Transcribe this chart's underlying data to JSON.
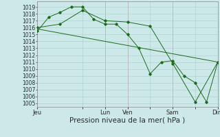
{
  "background_color": "#cce8e8",
  "grid_color": "#aacccc",
  "line_color": "#1a6b1a",
  "marker_color": "#1a6b1a",
  "vline_color": "#cc9999",
  "xlabel": "Pression niveau de la mer( hPa )",
  "xlabel_fontsize": 7.5,
  "yticks": [
    1005,
    1006,
    1007,
    1008,
    1009,
    1010,
    1011,
    1012,
    1013,
    1014,
    1015,
    1016,
    1017,
    1018,
    1019
  ],
  "ylim": [
    1004.5,
    1019.8
  ],
  "xtick_labels": [
    "Jeu",
    "",
    "Lun",
    "Ven",
    "",
    "Sam",
    "",
    "Dim"
  ],
  "xtick_positions": [
    0,
    48,
    72,
    96,
    120,
    144,
    168,
    192
  ],
  "xlim": [
    0,
    192
  ],
  "series1_x": [
    0,
    12,
    24,
    36,
    48,
    60,
    72,
    84,
    96,
    108,
    120,
    132,
    144,
    156,
    168,
    180,
    192
  ],
  "series1_y": [
    1015.5,
    1017.5,
    1018.2,
    1019.0,
    1019.0,
    1017.2,
    1016.5,
    1016.5,
    1015.0,
    1013.0,
    1009.3,
    1011.0,
    1011.2,
    1009.0,
    1008.0,
    1005.2,
    1011.0
  ],
  "series2_x": [
    0,
    24,
    48,
    72,
    96,
    120,
    144,
    168,
    192
  ],
  "series2_y": [
    1016.0,
    1016.5,
    1018.5,
    1017.0,
    1016.8,
    1016.2,
    1010.8,
    1005.2,
    1011.0
  ],
  "series3_x": [
    0,
    192
  ],
  "series3_y": [
    1015.8,
    1011.0
  ],
  "major_vline_positions": [
    0,
    72,
    96,
    144,
    192
  ],
  "tick_fontsize": 5.5,
  "ytick_fontsize": 5.5,
  "xtick_fontsize": 6.0,
  "figsize": [
    3.2,
    2.0
  ],
  "dpi": 100
}
